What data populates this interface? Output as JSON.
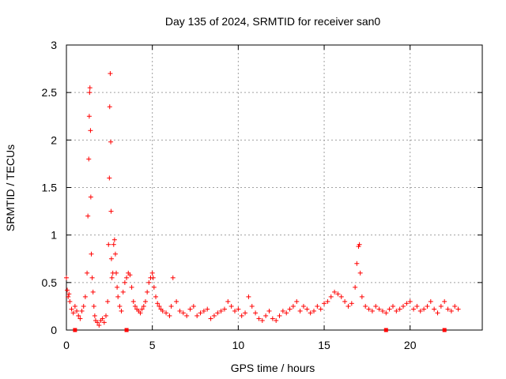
{
  "chart_data": {
    "type": "scatter",
    "title": "Day 135 of 2024, SRMTID for receiver san0",
    "xlabel": "GPS time / hours",
    "ylabel": "SRMTID / TECUs",
    "xlim": [
      0,
      24.2
    ],
    "ylim": [
      0,
      3
    ],
    "xticks": [
      0,
      5,
      10,
      15,
      20
    ],
    "xtick_labels": [
      "0",
      "5",
      "10",
      "15",
      "20"
    ],
    "yticks": [
      0,
      0.5,
      1,
      1.5,
      2,
      2.5,
      3
    ],
    "ytick_labels": [
      "0",
      "0.5",
      "1",
      "1.5",
      "2",
      "2.5",
      "3"
    ],
    "grid": true,
    "marker": "+",
    "color": "#ff0000",
    "series": [
      {
        "name": "SRMTID",
        "x": [
          0.0,
          0.05,
          0.1,
          0.15,
          0.2,
          0.3,
          0.4,
          0.5,
          0.6,
          0.7,
          0.8,
          0.9,
          1.0,
          1.1,
          1.2,
          1.25,
          1.3,
          1.33,
          1.35,
          1.37,
          1.4,
          1.42,
          1.45,
          1.5,
          1.55,
          1.6,
          1.65,
          1.7,
          1.8,
          1.9,
          2.0,
          2.1,
          2.2,
          2.3,
          2.4,
          2.45,
          2.5,
          2.52,
          2.55,
          2.58,
          2.6,
          2.62,
          2.65,
          2.7,
          2.75,
          2.8,
          2.85,
          2.9,
          2.95,
          3.0,
          3.1,
          3.2,
          3.3,
          3.4,
          3.5,
          3.6,
          3.7,
          3.8,
          3.9,
          4.0,
          4.1,
          4.2,
          4.3,
          4.4,
          4.5,
          4.6,
          4.7,
          4.8,
          4.9,
          5.0,
          5.05,
          5.1,
          5.2,
          5.3,
          5.4,
          5.5,
          5.6,
          5.8,
          6.0,
          6.1,
          6.2,
          6.4,
          6.6,
          6.8,
          7.0,
          7.2,
          7.4,
          7.6,
          7.8,
          8.0,
          8.2,
          8.4,
          8.6,
          8.8,
          9.0,
          9.2,
          9.4,
          9.6,
          9.8,
          10.0,
          10.2,
          10.4,
          10.6,
          10.8,
          11.0,
          11.2,
          11.4,
          11.6,
          11.8,
          12.0,
          12.2,
          12.4,
          12.6,
          12.8,
          13.0,
          13.2,
          13.4,
          13.6,
          13.8,
          14.0,
          14.2,
          14.4,
          14.6,
          14.8,
          15.0,
          15.2,
          15.4,
          15.6,
          15.8,
          16.0,
          16.2,
          16.4,
          16.6,
          16.8,
          16.9,
          17.0,
          17.05,
          17.1,
          17.2,
          17.4,
          17.6,
          17.8,
          18.0,
          18.2,
          18.4,
          18.6,
          18.8,
          19.0,
          19.2,
          19.4,
          19.6,
          19.8,
          20.0,
          20.2,
          20.4,
          20.6,
          20.8,
          21.0,
          21.2,
          21.4,
          21.6,
          21.8,
          22.0,
          22.2,
          22.4,
          22.6,
          22.8
        ],
        "y": [
          0.55,
          0.42,
          0.35,
          0.38,
          0.3,
          0.22,
          0.18,
          0.25,
          0.2,
          0.15,
          0.12,
          0.2,
          0.25,
          0.35,
          0.6,
          1.2,
          1.8,
          2.25,
          2.5,
          2.55,
          2.1,
          1.4,
          0.8,
          0.55,
          0.4,
          0.25,
          0.15,
          0.1,
          0.08,
          0.05,
          0.1,
          0.12,
          0.08,
          0.15,
          0.3,
          0.9,
          1.6,
          2.35,
          2.7,
          1.98,
          1.25,
          0.75,
          0.55,
          0.6,
          0.9,
          0.95,
          0.8,
          0.6,
          0.45,
          0.35,
          0.25,
          0.2,
          0.4,
          0.5,
          0.55,
          0.6,
          0.58,
          0.45,
          0.3,
          0.25,
          0.22,
          0.2,
          0.18,
          0.22,
          0.25,
          0.3,
          0.4,
          0.5,
          0.55,
          0.6,
          0.55,
          0.45,
          0.35,
          0.28,
          0.25,
          0.22,
          0.2,
          0.18,
          0.15,
          0.25,
          0.55,
          0.3,
          0.2,
          0.18,
          0.15,
          0.22,
          0.25,
          0.15,
          0.18,
          0.2,
          0.22,
          0.12,
          0.15,
          0.18,
          0.2,
          0.22,
          0.3,
          0.25,
          0.2,
          0.22,
          0.15,
          0.18,
          0.35,
          0.25,
          0.18,
          0.12,
          0.1,
          0.15,
          0.2,
          0.12,
          0.1,
          0.15,
          0.2,
          0.18,
          0.22,
          0.25,
          0.3,
          0.2,
          0.25,
          0.22,
          0.18,
          0.2,
          0.25,
          0.22,
          0.28,
          0.3,
          0.35,
          0.4,
          0.38,
          0.35,
          0.3,
          0.25,
          0.28,
          0.45,
          0.7,
          0.88,
          0.9,
          0.6,
          0.35,
          0.25,
          0.22,
          0.2,
          0.25,
          0.22,
          0.2,
          0.18,
          0.22,
          0.25,
          0.2,
          0.22,
          0.25,
          0.28,
          0.3,
          0.22,
          0.25,
          0.2,
          0.22,
          0.25,
          0.3,
          0.22,
          0.18,
          0.25,
          0.3,
          0.22,
          0.2,
          0.25,
          0.22
        ]
      },
      {
        "name": "markers-at-zero",
        "x": [
          0.5,
          3.5,
          18.6,
          22.0
        ],
        "y": [
          0,
          0,
          0,
          0
        ]
      }
    ]
  }
}
